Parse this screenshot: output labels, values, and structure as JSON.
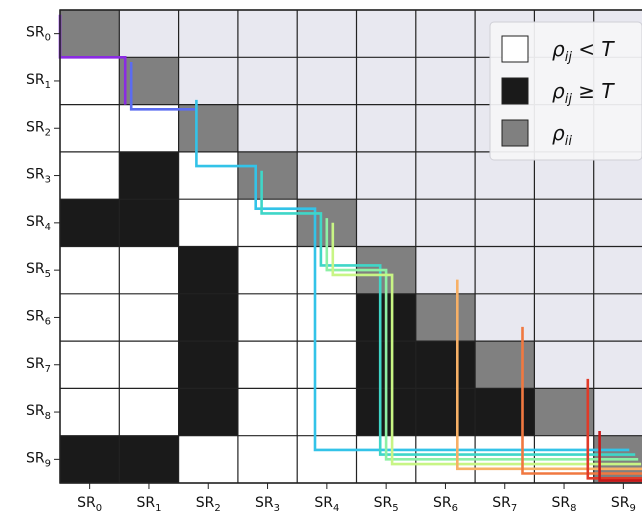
{
  "chart_data": {
    "type": "heatmap",
    "row_labels": [
      "SR₀",
      "SR₁",
      "SR₂",
      "SR₃",
      "SR₄",
      "SR₅",
      "SR₆",
      "SR₇",
      "SR₈",
      "SR₉"
    ],
    "col_labels": [
      "SR₀",
      "SR₁",
      "SR₂",
      "SR₃",
      "SR₄",
      "SR₅",
      "SR₆",
      "SR₇",
      "SR₈",
      "SR₉"
    ],
    "cell_states_lower": [
      [],
      [
        0
      ],
      [
        0,
        0
      ],
      [
        0,
        1,
        0
      ],
      [
        1,
        1,
        0,
        0
      ],
      [
        0,
        0,
        1,
        0,
        0
      ],
      [
        0,
        0,
        1,
        0,
        0,
        1
      ],
      [
        0,
        0,
        1,
        0,
        0,
        1,
        1
      ],
      [
        0,
        0,
        1,
        0,
        0,
        1,
        1,
        1
      ],
      [
        1,
        1,
        0,
        0,
        0,
        0,
        0,
        0,
        0
      ]
    ],
    "state_meaning": {
      "0": "below threshold",
      "1": "at or above threshold"
    },
    "legend": {
      "position": "top-right",
      "entries": [
        {
          "label": "ρ_ij < T",
          "color": "#ffffff"
        },
        {
          "label": "ρ_ij ≥ T",
          "color": "#1a1a1a"
        },
        {
          "label": "ρ_ii",
          "color": "#808080"
        }
      ]
    },
    "upper_triangle_color": "#e8e8f0",
    "paths": [
      {
        "color": "#8a2be2",
        "points": [
          [
            0,
            0.1
          ],
          [
            0,
            1
          ],
          [
            1.1,
            1
          ],
          [
            1.1,
            2
          ]
        ]
      },
      {
        "color": "#5b6cf0",
        "points": [
          [
            1.2,
            1.1
          ],
          [
            1.2,
            2.1
          ],
          [
            2.3,
            2.1
          ]
        ]
      },
      {
        "color": "#33c3e8",
        "points": [
          [
            2.3,
            1.9
          ],
          [
            2.3,
            3.3
          ],
          [
            3.3,
            3.3
          ],
          [
            3.3,
            4.2
          ],
          [
            4.3,
            4.2
          ],
          [
            4.3,
            9.3
          ],
          [
            9.6,
            9.3
          ]
        ]
      },
      {
        "color": "#3fd6c8",
        "points": [
          [
            3.4,
            3.4
          ],
          [
            3.4,
            4.3
          ],
          [
            4.4,
            4.3
          ],
          [
            4.4,
            5.4
          ],
          [
            5.4,
            5.4
          ],
          [
            5.4,
            9.4
          ],
          [
            9.7,
            9.4
          ]
        ]
      },
      {
        "color": "#8df0a5",
        "points": [
          [
            4.5,
            4.4
          ],
          [
            4.5,
            5.5
          ],
          [
            5.5,
            5.5
          ],
          [
            5.5,
            9.5
          ],
          [
            9.75,
            9.5
          ]
        ]
      },
      {
        "color": "#c8f585",
        "points": [
          [
            4.6,
            4.5
          ],
          [
            4.6,
            5.6
          ],
          [
            5.6,
            5.6
          ],
          [
            5.6,
            9.6
          ],
          [
            9.8,
            9.6
          ]
        ]
      },
      {
        "color": "#f7b066",
        "points": [
          [
            6.7,
            5.7
          ],
          [
            6.7,
            9.7
          ],
          [
            9.85,
            9.7
          ]
        ]
      },
      {
        "color": "#f07840",
        "points": [
          [
            7.8,
            6.7
          ],
          [
            7.8,
            9.8
          ],
          [
            9.9,
            9.8
          ]
        ]
      },
      {
        "color": "#e03a28",
        "points": [
          [
            8.9,
            7.8
          ],
          [
            8.9,
            9.9
          ],
          [
            9.95,
            9.9
          ]
        ]
      },
      {
        "color": "#c81818",
        "points": [
          [
            9.1,
            8.9
          ],
          [
            9.1,
            9.95
          ],
          [
            10,
            9.95
          ]
        ]
      }
    ]
  }
}
